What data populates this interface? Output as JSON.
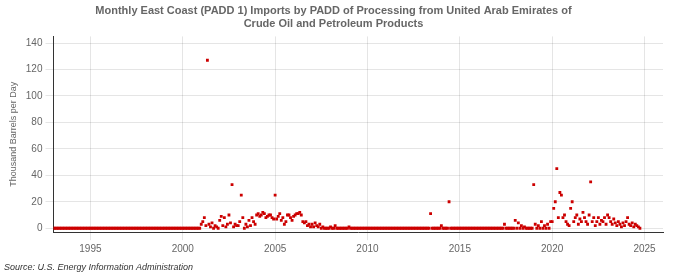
{
  "chart_data": {
    "type": "scatter",
    "title": "Monthly East Coast (PADD 1) Imports by PADD of Processing from United Arab Emirates of\nCrude Oil and Petroleum Products",
    "ylabel": "Thousand Barrels per Day",
    "source": "Source: U.S. Energy Information Administration",
    "color": "#cc0000",
    "marker": "square",
    "grid": true,
    "xlim": [
      1993.0,
      2026.0
    ],
    "ylim": [
      -3,
      145
    ],
    "xticks": [
      1995,
      2000,
      2005,
      2010,
      2015,
      2020,
      2025
    ],
    "yticks": [
      0,
      20,
      40,
      60,
      80,
      100,
      120,
      140
    ],
    "x": [
      1993.0,
      1993.083,
      1993.167,
      1993.25,
      1993.333,
      1993.417,
      1993.5,
      1993.583,
      1993.667,
      1993.75,
      1993.833,
      1993.917,
      1994.0,
      1994.083,
      1994.167,
      1994.25,
      1994.333,
      1994.417,
      1994.5,
      1994.583,
      1994.667,
      1994.75,
      1994.833,
      1994.917,
      1995.0,
      1995.083,
      1995.167,
      1995.25,
      1995.333,
      1995.417,
      1995.5,
      1995.583,
      1995.667,
      1995.75,
      1995.833,
      1995.917,
      1996.0,
      1996.083,
      1996.167,
      1996.25,
      1996.333,
      1996.417,
      1996.5,
      1996.583,
      1996.667,
      1996.75,
      1996.833,
      1996.917,
      1997.0,
      1997.083,
      1997.167,
      1997.25,
      1997.333,
      1997.417,
      1997.5,
      1997.583,
      1997.667,
      1997.75,
      1997.833,
      1997.917,
      1998.0,
      1998.083,
      1998.167,
      1998.25,
      1998.333,
      1998.417,
      1998.5,
      1998.583,
      1998.667,
      1998.75,
      1998.833,
      1998.917,
      1999.0,
      1999.083,
      1999.167,
      1999.25,
      1999.333,
      1999.417,
      1999.5,
      1999.583,
      1999.667,
      1999.75,
      1999.833,
      1999.917,
      2000.0,
      2000.083,
      2000.167,
      2000.25,
      2000.333,
      2000.417,
      2000.5,
      2000.583,
      2000.667,
      2000.75,
      2000.833,
      2000.917,
      2001.0,
      2001.083,
      2001.167,
      2001.25,
      2001.333,
      2001.417,
      2001.5,
      2001.583,
      2001.667,
      2001.75,
      2001.833,
      2001.917,
      2002.0,
      2002.083,
      2002.167,
      2002.25,
      2002.333,
      2002.417,
      2002.5,
      2002.583,
      2002.667,
      2002.75,
      2002.833,
      2002.917,
      2003.0,
      2003.083,
      2003.167,
      2003.25,
      2003.333,
      2003.417,
      2003.5,
      2003.583,
      2003.667,
      2003.75,
      2003.833,
      2003.917,
      2004.0,
      2004.083,
      2004.167,
      2004.25,
      2004.333,
      2004.417,
      2004.5,
      2004.583,
      2004.667,
      2004.75,
      2004.833,
      2004.917,
      2005.0,
      2005.083,
      2005.167,
      2005.25,
      2005.333,
      2005.417,
      2005.5,
      2005.583,
      2005.667,
      2005.75,
      2005.833,
      2005.917,
      2006.0,
      2006.083,
      2006.167,
      2006.25,
      2006.333,
      2006.417,
      2006.5,
      2006.583,
      2006.667,
      2006.75,
      2006.833,
      2006.917,
      2007.0,
      2007.083,
      2007.167,
      2007.25,
      2007.333,
      2007.417,
      2007.5,
      2007.583,
      2007.667,
      2007.75,
      2007.833,
      2007.917,
      2008.0,
      2008.083,
      2008.167,
      2008.25,
      2008.333,
      2008.417,
      2008.5,
      2008.583,
      2008.667,
      2008.75,
      2008.833,
      2008.917,
      2009.0,
      2009.083,
      2009.167,
      2009.25,
      2009.333,
      2009.417,
      2009.5,
      2009.583,
      2009.667,
      2009.75,
      2009.833,
      2009.917,
      2010.0,
      2010.083,
      2010.167,
      2010.25,
      2010.333,
      2010.417,
      2010.5,
      2010.583,
      2010.667,
      2010.75,
      2010.833,
      2010.917,
      2011.0,
      2011.083,
      2011.167,
      2011.25,
      2011.333,
      2011.417,
      2011.5,
      2011.583,
      2011.667,
      2011.75,
      2011.833,
      2011.917,
      2012.0,
      2012.083,
      2012.167,
      2012.25,
      2012.333,
      2012.417,
      2012.5,
      2012.583,
      2012.667,
      2012.75,
      2012.833,
      2012.917,
      2013.0,
      2013.083,
      2013.167,
      2013.25,
      2013.333,
      2013.417,
      2013.5,
      2013.583,
      2013.667,
      2013.75,
      2013.833,
      2013.917,
      2014.0,
      2014.083,
      2014.167,
      2014.25,
      2014.333,
      2014.417,
      2014.5,
      2014.583,
      2014.667,
      2014.75,
      2014.833,
      2014.917,
      2015.0,
      2015.083,
      2015.167,
      2015.25,
      2015.333,
      2015.417,
      2015.5,
      2015.583,
      2015.667,
      2015.75,
      2015.833,
      2015.917,
      2016.0,
      2016.083,
      2016.167,
      2016.25,
      2016.333,
      2016.417,
      2016.5,
      2016.583,
      2016.667,
      2016.75,
      2016.833,
      2016.917,
      2017.0,
      2017.083,
      2017.167,
      2017.25,
      2017.333,
      2017.417,
      2017.5,
      2017.583,
      2017.667,
      2017.75,
      2017.833,
      2017.917,
      2018.0,
      2018.083,
      2018.167,
      2018.25,
      2018.333,
      2018.417,
      2018.5,
      2018.583,
      2018.667,
      2018.75,
      2018.833,
      2018.917,
      2019.0,
      2019.083,
      2019.167,
      2019.25,
      2019.333,
      2019.417,
      2019.5,
      2019.583,
      2019.667,
      2019.75,
      2019.833,
      2019.917,
      2020.0,
      2020.083,
      2020.167,
      2020.25,
      2020.333,
      2020.417,
      2020.5,
      2020.583,
      2020.667,
      2020.75,
      2020.833,
      2020.917,
      2021.0,
      2021.083,
      2021.167,
      2021.25,
      2021.333,
      2021.417,
      2021.5,
      2021.583,
      2021.667,
      2021.75,
      2021.833,
      2021.917,
      2022.0,
      2022.083,
      2022.167,
      2022.25,
      2022.333,
      2022.417,
      2022.5,
      2022.583,
      2022.667,
      2022.75,
      2022.833,
      2022.917,
      2023.0,
      2023.083,
      2023.167,
      2023.25,
      2023.333,
      2023.417,
      2023.5,
      2023.583,
      2023.667,
      2023.75,
      2023.833,
      2023.917,
      2024.0,
      2024.083,
      2024.167,
      2024.25,
      2024.333,
      2024.417,
      2024.5,
      2024.583,
      2024.667,
      2024.75
    ],
    "values": [
      0,
      0,
      0,
      0,
      0,
      0,
      0,
      0,
      0,
      0,
      0,
      0,
      0,
      0,
      0,
      0,
      0,
      0,
      0,
      0,
      0,
      0,
      0,
      0,
      0,
      0,
      0,
      0,
      0,
      0,
      0,
      0,
      0,
      0,
      0,
      0,
      0,
      0,
      0,
      0,
      0,
      0,
      0,
      0,
      0,
      0,
      0,
      0,
      0,
      0,
      0,
      0,
      0,
      0,
      0,
      0,
      0,
      0,
      0,
      0,
      0,
      0,
      0,
      0,
      0,
      0,
      0,
      0,
      0,
      0,
      0,
      0,
      0,
      0,
      0,
      0,
      0,
      0,
      0,
      0,
      0,
      0,
      0,
      0,
      0,
      0,
      0,
      0,
      0,
      0,
      0,
      0,
      0,
      0,
      0,
      0,
      3,
      5,
      8,
      2,
      127,
      3,
      1,
      4,
      0,
      2,
      1,
      0,
      6,
      9,
      2,
      8,
      1,
      3,
      10,
      4,
      33,
      1,
      3,
      2,
      2,
      5,
      25,
      8,
      0,
      3,
      1,
      6,
      2,
      8,
      5,
      3,
      10,
      11,
      9,
      10,
      12,
      11,
      8,
      9,
      10,
      10,
      8,
      7,
      25,
      7,
      9,
      11,
      6,
      8,
      3,
      5,
      10,
      10,
      8,
      6,
      9,
      10,
      11,
      11,
      12,
      10,
      5,
      4,
      5,
      2,
      3,
      1,
      3,
      1,
      4,
      2,
      1,
      3,
      0,
      1,
      0,
      0,
      0,
      0,
      1,
      0,
      0,
      2,
      0,
      0,
      0,
      0,
      0,
      0,
      0,
      0,
      1,
      0,
      0,
      0,
      0,
      0,
      0,
      0,
      0,
      0,
      0,
      0,
      0,
      0,
      0,
      0,
      0,
      0,
      0,
      0,
      0,
      0,
      0,
      0,
      0,
      0,
      0,
      0,
      0,
      0,
      0,
      0,
      0,
      0,
      0,
      0,
      0,
      0,
      0,
      0,
      0,
      0,
      0,
      0,
      0,
      0,
      0,
      0,
      0,
      0,
      0,
      0,
      0,
      11,
      0,
      0,
      0,
      0,
      0,
      0,
      2,
      0,
      0,
      0,
      0,
      20,
      0,
      0,
      0,
      0,
      0,
      0,
      0,
      0,
      0,
      0,
      0,
      0,
      0,
      0,
      0,
      0,
      0,
      0,
      0,
      0,
      0,
      0,
      0,
      0,
      0,
      0,
      0,
      0,
      0,
      0,
      0,
      0,
      0,
      0,
      0,
      3,
      0,
      0,
      0,
      0,
      0,
      0,
      6,
      0,
      4,
      0,
      2,
      0,
      1,
      0,
      0,
      0,
      0,
      0,
      33,
      3,
      0,
      2,
      0,
      5,
      0,
      2,
      0,
      3,
      0,
      5,
      5,
      15,
      20,
      45,
      8,
      27,
      25,
      8,
      10,
      5,
      3,
      2,
      15,
      20,
      5,
      8,
      10,
      3,
      7,
      5,
      12,
      8,
      5,
      3,
      10,
      35,
      5,
      8,
      2,
      5,
      8,
      3,
      6,
      5,
      8,
      3,
      10,
      8,
      5,
      3,
      7,
      4,
      2,
      5,
      3,
      1,
      4,
      2,
      5,
      8,
      3,
      2,
      4,
      1,
      3,
      2,
      1,
      0
    ]
  }
}
